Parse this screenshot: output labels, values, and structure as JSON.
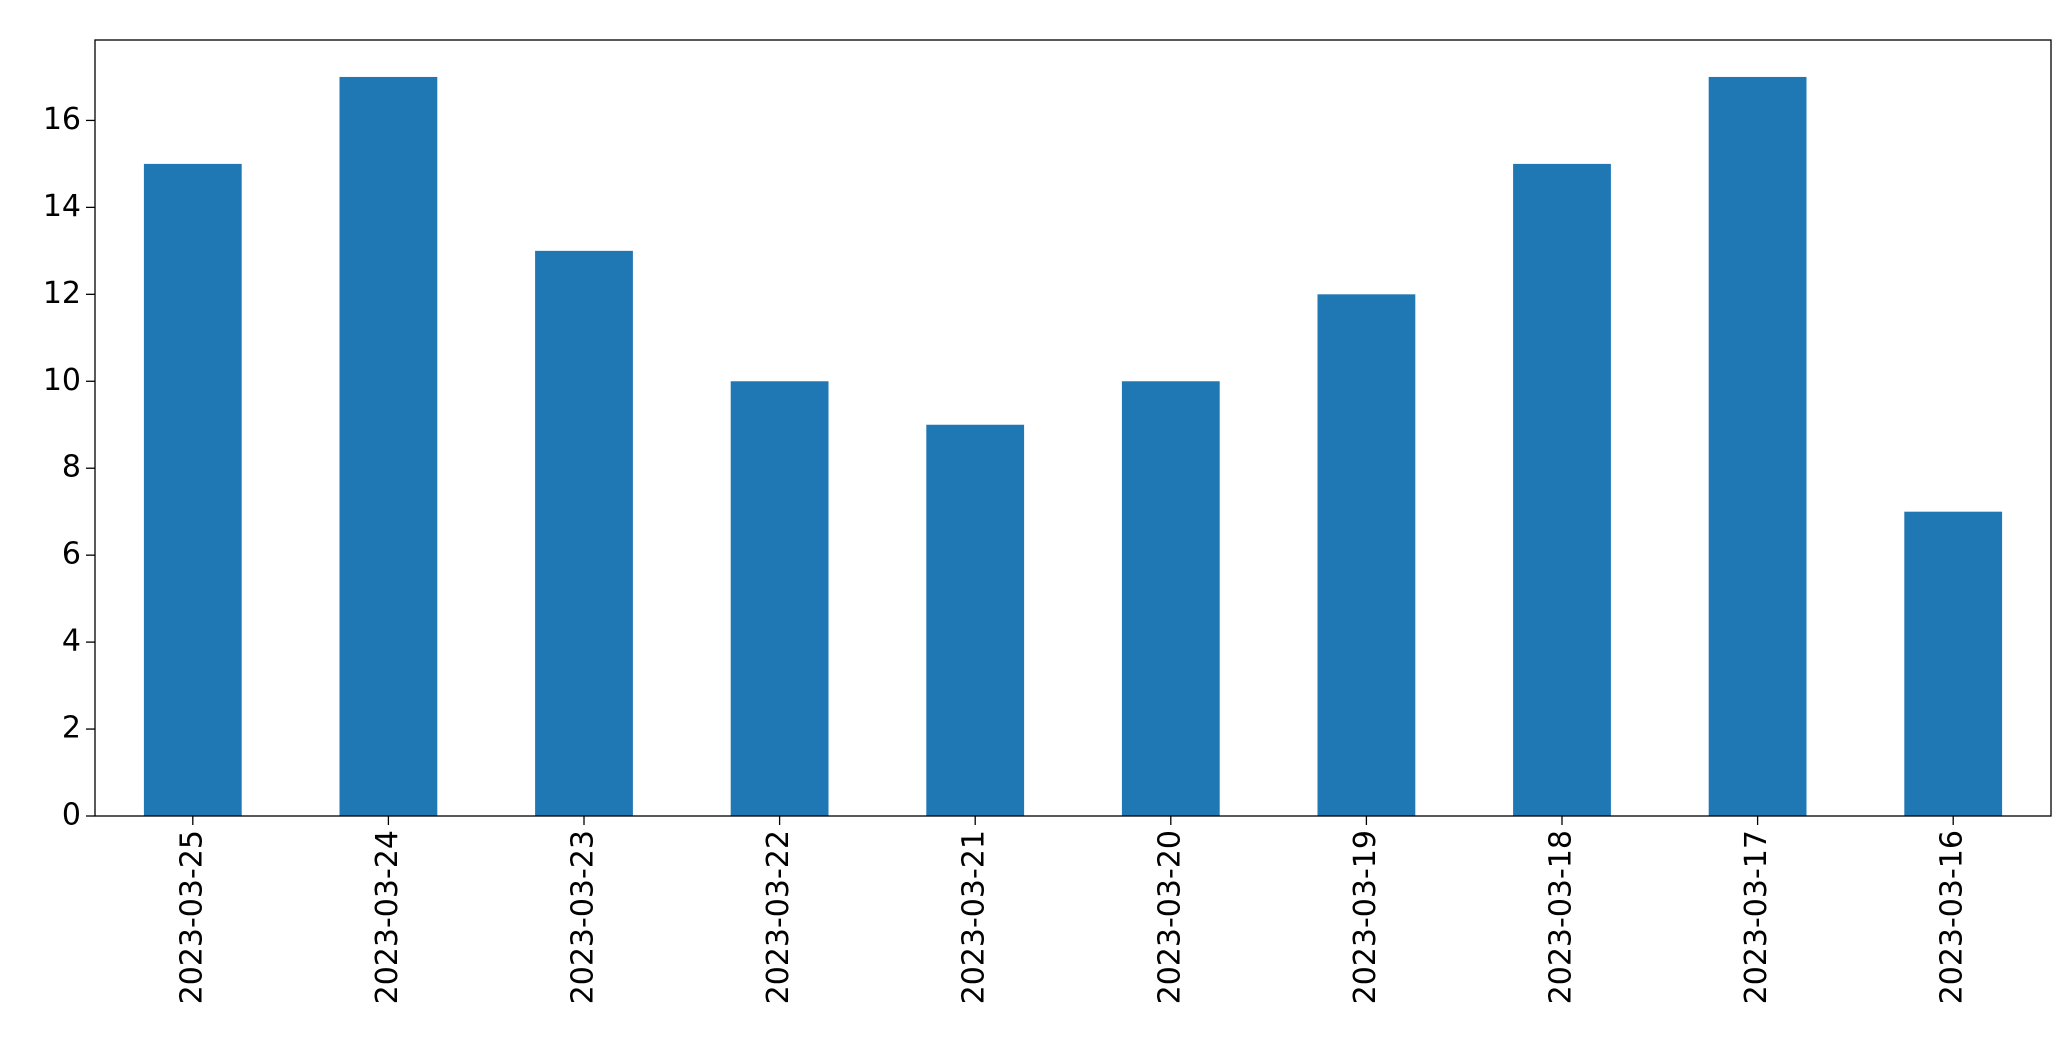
{
  "chart_data": {
    "type": "bar",
    "categories": [
      "2023-03-25",
      "2023-03-24",
      "2023-03-23",
      "2023-03-22",
      "2023-03-21",
      "2023-03-20",
      "2023-03-19",
      "2023-03-18",
      "2023-03-17",
      "2023-03-16"
    ],
    "values": [
      15,
      17,
      13,
      10,
      9,
      10,
      12,
      15,
      17,
      7
    ],
    "color": "#1f77b4",
    "ylim": [
      0,
      17.85
    ],
    "yticks": [
      0,
      2,
      4,
      6,
      8,
      10,
      12,
      14,
      16
    ],
    "grid": false
  }
}
